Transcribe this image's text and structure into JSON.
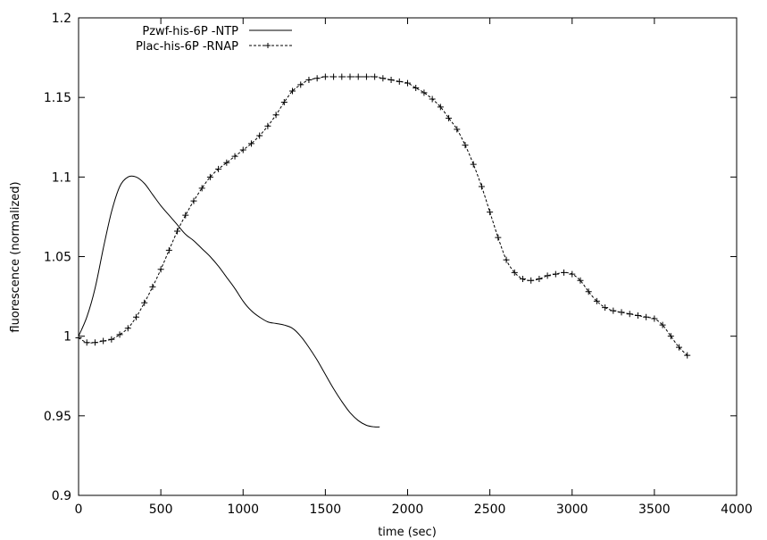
{
  "chart_data": {
    "type": "line",
    "title": "",
    "xlabel": "time (sec)",
    "ylabel": "fluorescence (normalized)",
    "xlim": [
      0,
      4000
    ],
    "ylim": [
      0.9,
      1.2
    ],
    "xticks": [
      "0",
      "500",
      "1000",
      "1500",
      "2000",
      "2500",
      "3000",
      "3500",
      "4000"
    ],
    "yticks": [
      "0.9",
      "0.95",
      "1",
      "1.05",
      "1.1",
      "1.15",
      "1.2"
    ],
    "grid": false,
    "legend": "top-left",
    "series": [
      {
        "name": "Pzwf-his-6P -NTP",
        "marker": "none",
        "line": "solid",
        "x": [
          0,
          50,
          100,
          150,
          200,
          250,
          300,
          350,
          400,
          450,
          500,
          550,
          600,
          650,
          700,
          750,
          800,
          850,
          900,
          950,
          1000,
          1050,
          1100,
          1150,
          1200,
          1250,
          1300,
          1350,
          1400,
          1450,
          1500,
          1550,
          1600,
          1650,
          1700,
          1750,
          1800,
          1830
        ],
        "y": [
          1.0,
          1.012,
          1.03,
          1.055,
          1.078,
          1.094,
          1.1,
          1.1,
          1.096,
          1.089,
          1.082,
          1.076,
          1.07,
          1.064,
          1.06,
          1.055,
          1.05,
          1.044,
          1.037,
          1.03,
          1.022,
          1.016,
          1.012,
          1.009,
          1.008,
          1.007,
          1.005,
          1.0,
          0.993,
          0.985,
          0.976,
          0.967,
          0.959,
          0.952,
          0.947,
          0.944,
          0.943,
          0.943
        ]
      },
      {
        "name": "Plac-his-6P -RNAP",
        "marker": "plus",
        "line": "dashed",
        "x": [
          0,
          50,
          100,
          150,
          200,
          250,
          300,
          350,
          400,
          450,
          500,
          550,
          600,
          650,
          700,
          750,
          800,
          850,
          900,
          950,
          1000,
          1050,
          1100,
          1150,
          1200,
          1250,
          1300,
          1350,
          1400,
          1450,
          1500,
          1550,
          1600,
          1650,
          1700,
          1750,
          1800,
          1850,
          1900,
          1950,
          2000,
          2050,
          2100,
          2150,
          2200,
          2250,
          2300,
          2350,
          2400,
          2450,
          2500,
          2550,
          2600,
          2650,
          2700,
          2750,
          2800,
          2850,
          2900,
          2950,
          3000,
          3050,
          3100,
          3150,
          3200,
          3250,
          3300,
          3350,
          3400,
          3450,
          3500,
          3550,
          3600,
          3650,
          3700
        ],
        "y": [
          0.999,
          0.996,
          0.996,
          0.997,
          0.998,
          1.001,
          1.005,
          1.012,
          1.021,
          1.031,
          1.042,
          1.054,
          1.066,
          1.076,
          1.085,
          1.093,
          1.1,
          1.105,
          1.109,
          1.113,
          1.117,
          1.121,
          1.126,
          1.132,
          1.139,
          1.147,
          1.154,
          1.158,
          1.161,
          1.162,
          1.163,
          1.163,
          1.163,
          1.163,
          1.163,
          1.163,
          1.163,
          1.162,
          1.161,
          1.16,
          1.159,
          1.156,
          1.153,
          1.149,
          1.144,
          1.137,
          1.13,
          1.12,
          1.108,
          1.094,
          1.078,
          1.062,
          1.048,
          1.04,
          1.036,
          1.035,
          1.036,
          1.038,
          1.039,
          1.04,
          1.039,
          1.035,
          1.028,
          1.022,
          1.018,
          1.016,
          1.015,
          1.014,
          1.013,
          1.012,
          1.011,
          1.007,
          1.0,
          0.993,
          0.988
        ]
      }
    ]
  }
}
